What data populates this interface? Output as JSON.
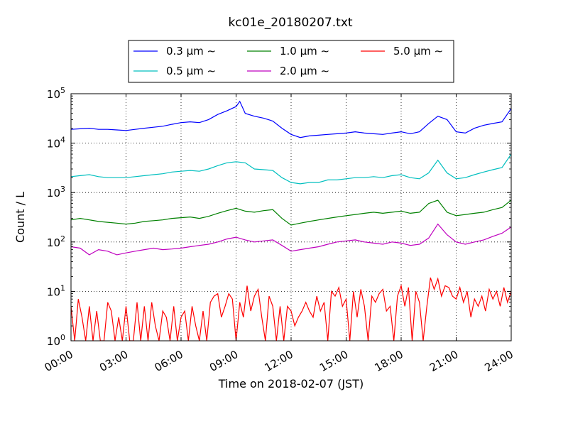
{
  "chart_data": {
    "type": "line",
    "title": "kc01e_20180207.txt",
    "xlabel": "Time on 2018-02-07 (JST)",
    "ylabel": "Count / L",
    "x_unit": "hours",
    "xlim": [
      0,
      24
    ],
    "ylim": [
      1,
      100000
    ],
    "yscale": "log",
    "grid": true,
    "legend_position": "top-center",
    "x_tick_labels": [
      "00:00",
      "03:00",
      "06:00",
      "09:00",
      "12:00",
      "15:00",
      "18:00",
      "21:00",
      "24:00"
    ],
    "y_tick_labels": [
      {
        "base": "10",
        "exp": "0"
      },
      {
        "base": "10",
        "exp": "1"
      },
      {
        "base": "10",
        "exp": "2"
      },
      {
        "base": "10",
        "exp": "3"
      },
      {
        "base": "10",
        "exp": "4"
      },
      {
        "base": "10",
        "exp": "5"
      }
    ],
    "series": [
      {
        "name": "0.3 μm ∼",
        "color": "#0000ff",
        "x": [
          0,
          0.5,
          1,
          1.5,
          2,
          2.5,
          3,
          3.5,
          4,
          4.5,
          5,
          5.5,
          6,
          6.5,
          7,
          7.5,
          8,
          8.5,
          9,
          9.2,
          9.5,
          10,
          10.5,
          11,
          11.5,
          12,
          12.5,
          13,
          13.5,
          14,
          14.5,
          15,
          15.5,
          16,
          16.5,
          17,
          17.5,
          18,
          18.5,
          19,
          19.5,
          20,
          20.5,
          21,
          21.5,
          22,
          22.5,
          23,
          23.5,
          24
        ],
        "values": [
          19000,
          19500,
          20000,
          19000,
          19000,
          18500,
          18000,
          19000,
          20000,
          21000,
          22000,
          24000,
          26000,
          27000,
          26000,
          30000,
          38000,
          45000,
          55000,
          70000,
          40000,
          35000,
          32000,
          28000,
          20000,
          15000,
          13000,
          14000,
          14500,
          15000,
          15500,
          16000,
          17000,
          16000,
          15500,
          15000,
          16000,
          17000,
          15500,
          17000,
          25000,
          35000,
          30000,
          17000,
          16000,
          20000,
          23000,
          25000,
          27000,
          50000
        ]
      },
      {
        "name": "0.5 μm ∼",
        "color": "#00bfbf",
        "x": [
          0,
          0.5,
          1,
          1.5,
          2,
          2.5,
          3,
          3.5,
          4,
          4.5,
          5,
          5.5,
          6,
          6.5,
          7,
          7.5,
          8,
          8.5,
          9,
          9.5,
          10,
          10.5,
          11,
          11.5,
          12,
          12.5,
          13,
          13.5,
          14,
          14.5,
          15,
          15.5,
          16,
          16.5,
          17,
          17.5,
          18,
          18.5,
          19,
          19.5,
          20,
          20.5,
          21,
          21.5,
          22,
          22.5,
          23,
          23.5,
          24
        ],
        "values": [
          2100,
          2200,
          2300,
          2100,
          2000,
          2000,
          2000,
          2100,
          2200,
          2300,
          2400,
          2600,
          2700,
          2800,
          2700,
          3000,
          3500,
          4000,
          4200,
          4000,
          3000,
          2900,
          2800,
          2000,
          1600,
          1500,
          1600,
          1600,
          1800,
          1800,
          1900,
          2000,
          2000,
          2100,
          2000,
          2200,
          2300,
          2000,
          1900,
          2500,
          4500,
          2500,
          1900,
          2000,
          2300,
          2600,
          2900,
          3200,
          6000
        ]
      },
      {
        "name": "1.0 μm ∼",
        "color": "#008000",
        "x": [
          0,
          0.5,
          1,
          1.5,
          2,
          2.5,
          3,
          3.5,
          4,
          4.5,
          5,
          5.5,
          6,
          6.5,
          7,
          7.5,
          8,
          8.5,
          9,
          9.5,
          10,
          10.5,
          11,
          11.5,
          12,
          12.5,
          13,
          13.5,
          14,
          14.5,
          15,
          15.5,
          16,
          16.5,
          17,
          17.5,
          18,
          18.5,
          19,
          19.5,
          20,
          20.5,
          21,
          21.5,
          22,
          22.5,
          23,
          23.5,
          24
        ],
        "values": [
          280,
          300,
          280,
          260,
          250,
          240,
          230,
          240,
          260,
          270,
          280,
          300,
          310,
          320,
          300,
          330,
          380,
          430,
          480,
          420,
          400,
          430,
          450,
          300,
          220,
          240,
          260,
          280,
          300,
          320,
          340,
          360,
          380,
          400,
          380,
          400,
          420,
          380,
          400,
          600,
          700,
          400,
          340,
          360,
          380,
          400,
          450,
          500,
          700
        ]
      },
      {
        "name": "2.0 μm ∼",
        "color": "#bf00bf",
        "x": [
          0,
          0.5,
          1,
          1.5,
          2,
          2.5,
          3,
          3.5,
          4,
          4.5,
          5,
          5.5,
          6,
          6.5,
          7,
          7.5,
          8,
          8.5,
          9,
          9.5,
          10,
          10.5,
          11,
          11.5,
          12,
          12.5,
          13,
          13.5,
          14,
          14.5,
          15,
          15.5,
          16,
          16.5,
          17,
          17.5,
          18,
          18.5,
          19,
          19.5,
          20,
          20.5,
          21,
          21.5,
          22,
          22.5,
          23,
          23.5,
          24
        ],
        "values": [
          80,
          75,
          55,
          70,
          65,
          55,
          60,
          65,
          70,
          75,
          70,
          72,
          75,
          80,
          85,
          90,
          100,
          115,
          125,
          110,
          100,
          105,
          110,
          85,
          65,
          70,
          75,
          80,
          90,
          100,
          105,
          110,
          100,
          95,
          90,
          100,
          95,
          85,
          90,
          120,
          230,
          140,
          100,
          90,
          100,
          110,
          130,
          150,
          200
        ]
      },
      {
        "name": "5.0 μm ∼",
        "color": "#ff0000",
        "x": [
          0,
          0.2,
          0.4,
          0.6,
          0.8,
          1,
          1.2,
          1.4,
          1.6,
          1.8,
          2,
          2.2,
          2.4,
          2.6,
          2.8,
          3,
          3.2,
          3.4,
          3.6,
          3.8,
          4,
          4.2,
          4.4,
          4.6,
          4.8,
          5,
          5.2,
          5.4,
          5.6,
          5.8,
          6,
          6.2,
          6.4,
          6.6,
          6.8,
          7,
          7.2,
          7.4,
          7.6,
          7.8,
          8,
          8.2,
          8.4,
          8.6,
          8.8,
          9,
          9.2,
          9.4,
          9.6,
          9.8,
          10,
          10.2,
          10.4,
          10.6,
          10.8,
          11,
          11.2,
          11.4,
          11.6,
          11.8,
          12,
          12.2,
          12.4,
          12.6,
          12.8,
          13,
          13.2,
          13.4,
          13.6,
          13.8,
          14,
          14.2,
          14.4,
          14.6,
          14.8,
          15,
          15.2,
          15.4,
          15.6,
          15.8,
          16,
          16.2,
          16.4,
          16.6,
          16.8,
          17,
          17.2,
          17.4,
          17.6,
          17.8,
          18,
          18.2,
          18.4,
          18.6,
          18.8,
          19,
          19.2,
          19.4,
          19.6,
          19.8,
          20,
          20.2,
          20.4,
          20.6,
          20.8,
          21,
          21.2,
          21.4,
          21.6,
          21.8,
          22,
          22.2,
          22.4,
          22.6,
          22.8,
          23,
          23.2,
          23.4,
          23.6,
          23.8,
          24
        ],
        "values": [
          5,
          1,
          7,
          3,
          1,
          5,
          1,
          4,
          1,
          1,
          6,
          4,
          1,
          3,
          1,
          5,
          1,
          1,
          6,
          1,
          5,
          1,
          6,
          2,
          1,
          4,
          3,
          1,
          5,
          1,
          3,
          4,
          1,
          5,
          2,
          1,
          4,
          1,
          6,
          8,
          9,
          3,
          5,
          9,
          7,
          1,
          6,
          3,
          13,
          4,
          8,
          11,
          3,
          1,
          8,
          5,
          1,
          5,
          1,
          5,
          4,
          2,
          3,
          4,
          6,
          4,
          3,
          8,
          4,
          6,
          1,
          10,
          8,
          12,
          5,
          7,
          1,
          10,
          3,
          11,
          5,
          1,
          8,
          6,
          9,
          11,
          4,
          5,
          1,
          8,
          13,
          5,
          12,
          1,
          10,
          6,
          1,
          5,
          19,
          11,
          18,
          8,
          13,
          12,
          8,
          7,
          12,
          6,
          10,
          3,
          7,
          5,
          8,
          4,
          11,
          7,
          10,
          5,
          12,
          6,
          10
        ]
      }
    ]
  }
}
